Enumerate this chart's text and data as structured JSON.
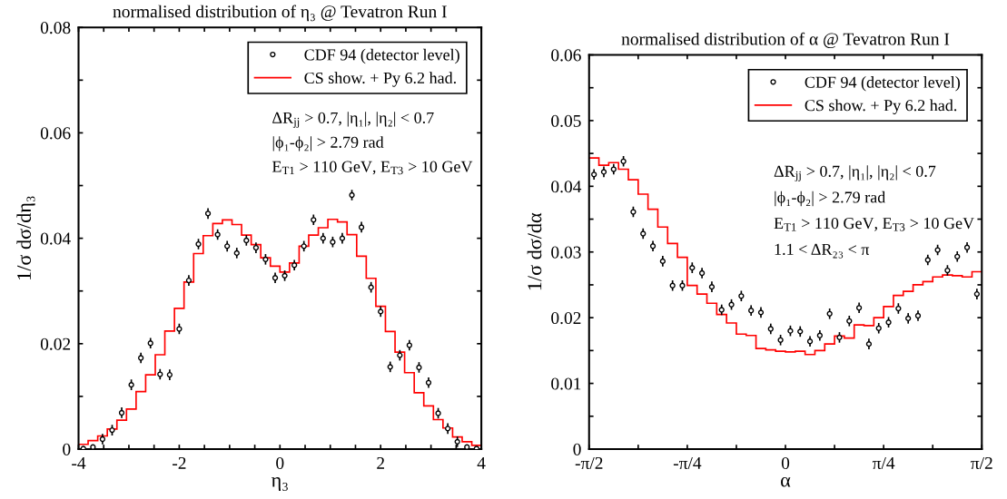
{
  "chart_data": [
    {
      "type": "scatter",
      "title": "normalised distribution of η₃ @ Tevatron Run I",
      "xlabel": "η₃",
      "ylabel": "1/σ dσ/dη₃",
      "xlim": [
        -4,
        4
      ],
      "ylim": [
        0,
        0.08
      ],
      "xticks": [
        -4,
        {
          "value": -3.5,
          "label": null
        },
        {
          "value": -3,
          "label": null
        },
        {
          "value": -2.5,
          "label": null
        },
        -2,
        {
          "value": -1.5,
          "label": null
        },
        {
          "value": -1,
          "label": null
        },
        {
          "value": -0.5,
          "label": null
        },
        0,
        {
          "value": 0.5,
          "label": null
        },
        {
          "value": 1,
          "label": null
        },
        {
          "value": 1.5,
          "label": null
        },
        2,
        {
          "value": 2.5,
          "label": null
        },
        {
          "value": 3,
          "label": null
        },
        {
          "value": 3.5,
          "label": null
        },
        4
      ],
      "yticks": [
        0,
        {
          "value": 0.01,
          "label": null
        },
        0.02,
        {
          "value": 0.03,
          "label": null
        },
        0.04,
        {
          "value": 0.05,
          "label": null
        },
        0.06,
        {
          "value": 0.07,
          "label": null
        },
        0.08
      ],
      "legend": "top right",
      "grid": false,
      "annotations": [
        "ΔR$_{jj}$ > 0.7, |η₁|, |η₂| < 0.7",
        "|ϕ₁-ϕ₂| > 2.79 rad",
        "E$_{T1}$ > 110 GeV, E$_{T3}$ > 10 GeV"
      ],
      "series": [
        {
          "name": "CDF 94 (detector level)",
          "marker": "circle",
          "color": "#000000",
          "x": [
            -3.905,
            -3.714,
            -3.524,
            -3.333,
            -3.143,
            -2.952,
            -2.762,
            -2.571,
            -2.381,
            -2.19,
            -2.0,
            -1.81,
            -1.619,
            -1.429,
            -1.238,
            -1.048,
            -0.857,
            -0.667,
            -0.476,
            -0.286,
            -0.095,
            0.095,
            0.286,
            0.476,
            0.667,
            0.857,
            1.048,
            1.238,
            1.429,
            1.619,
            1.81,
            2.0,
            2.19,
            2.381,
            2.571,
            2.762,
            2.952,
            3.143,
            3.333,
            3.524,
            3.714,
            3.905
          ],
          "values": [
            0.0001,
            0.0004,
            0.0019,
            0.0036,
            0.0069,
            0.0122,
            0.0173,
            0.0201,
            0.0142,
            0.0141,
            0.0228,
            0.032,
            0.0389,
            0.0447,
            0.0407,
            0.0385,
            0.0372,
            0.0396,
            0.0382,
            0.036,
            0.0325,
            0.0329,
            0.0349,
            0.0385,
            0.0435,
            0.04,
            0.0393,
            0.04,
            0.0482,
            0.0421,
            0.0307,
            0.0261,
            0.0156,
            0.0178,
            0.0197,
            0.0155,
            0.0126,
            0.0068,
            0.0039,
            0.0014,
            0.0004,
            0.0001
          ],
          "errors": [
            null,
            null,
            0.001,
            0.001,
            0.001,
            0.001,
            0.001,
            0.001,
            0.001,
            0.001,
            0.001,
            0.001,
            0.001,
            0.001,
            0.001,
            0.001,
            0.001,
            0.001,
            0.001,
            0.001,
            0.001,
            0.001,
            0.001,
            0.001,
            0.001,
            0.001,
            0.001,
            0.001,
            0.001,
            0.001,
            0.001,
            0.001,
            0.001,
            0.001,
            0.001,
            0.001,
            0.001,
            0.001,
            0.001,
            0.001,
            null,
            null
          ]
        },
        {
          "name": "CS show. + Py 6.2 had.",
          "type": "histogram",
          "color": "#ff0000",
          "bins": [
            -4,
            -3.81,
            -3.619,
            -3.429,
            -3.238,
            -3.048,
            -2.857,
            -2.667,
            -2.476,
            -2.286,
            -2.095,
            -1.905,
            -1.714,
            -1.524,
            -1.333,
            -1.143,
            -0.952,
            -0.762,
            -0.571,
            -0.381,
            -0.19,
            0,
            0.19,
            0.381,
            0.571,
            0.762,
            0.952,
            1.143,
            1.333,
            1.524,
            1.714,
            1.905,
            2.095,
            2.286,
            2.476,
            2.667,
            2.857,
            3.048,
            3.238,
            3.429,
            3.619,
            3.81,
            4
          ],
          "values": [
            0.0009,
            0.0016,
            0.0025,
            0.0038,
            0.0055,
            0.0076,
            0.0109,
            0.0141,
            0.0179,
            0.0224,
            0.0267,
            0.0317,
            0.0371,
            0.0405,
            0.0428,
            0.0435,
            0.0426,
            0.0406,
            0.0388,
            0.0363,
            0.0347,
            0.0336,
            0.0353,
            0.0385,
            0.0406,
            0.042,
            0.0436,
            0.0431,
            0.0407,
            0.0366,
            0.0324,
            0.0271,
            0.0223,
            0.0184,
            0.0145,
            0.0107,
            0.0082,
            0.0056,
            0.004,
            0.0023,
            0.0014,
            0.0007
          ]
        }
      ]
    },
    {
      "type": "scatter",
      "title": "normalised distribution of α @ Tevatron Run I",
      "xlabel": "α",
      "ylabel": "1/σ dσ/dα",
      "xlim": [
        -1.5708,
        1.5708
      ],
      "ylim": [
        0,
        0.06
      ],
      "xticks": [
        {
          "value": -1.5708,
          "label": "-π/2"
        },
        {
          "value": -1.1781,
          "label": null
        },
        {
          "value": -0.7854,
          "label": "-π/4"
        },
        {
          "value": -0.3927,
          "label": null
        },
        0,
        {
          "value": 0.3927,
          "label": null
        },
        {
          "value": 0.7854,
          "label": "π/4"
        },
        {
          "value": 1.1781,
          "label": null
        },
        {
          "value": 1.5708,
          "label": "π/2"
        }
      ],
      "yticks": [
        0,
        {
          "value": 0.005,
          "label": null
        },
        0.01,
        {
          "value": 0.015,
          "label": null
        },
        0.02,
        {
          "value": 0.025,
          "label": null
        },
        0.03,
        {
          "value": 0.035,
          "label": null
        },
        0.04,
        {
          "value": 0.045,
          "label": null
        },
        0.05,
        {
          "value": 0.055,
          "label": null
        },
        0.06
      ],
      "legend": "top right",
      "grid": false,
      "annotations": [
        "ΔR$_{jj}$ > 0.7, |η₁|, |η₂| < 0.7",
        "|ϕ₁-ϕ₂| > 2.79 rad",
        "E$_{T1}$ > 110 GeV, E$_{T3}$ > 10 GeV",
        "1.1 < ΔR₂₃ < π"
      ],
      "series": [
        {
          "name": "CDF 94 (detector level)",
          "marker": "circle",
          "color": "#000000",
          "x": [
            -1.5315,
            -1.453,
            -1.3744,
            -1.2959,
            -1.2174,
            -1.1388,
            -1.0603,
            -0.9817,
            -0.9032,
            -0.8247,
            -0.7461,
            -0.6676,
            -0.589,
            -0.5105,
            -0.432,
            -0.3534,
            -0.2749,
            -0.1963,
            -0.1178,
            -0.0393,
            0.0393,
            0.1178,
            0.1963,
            0.2749,
            0.3534,
            0.432,
            0.5105,
            0.589,
            0.6676,
            0.7461,
            0.8247,
            0.9032,
            0.9817,
            1.0603,
            1.1388,
            1.2174,
            1.2959,
            1.3744,
            1.453,
            1.5315
          ],
          "values": [
            0.0418,
            0.0422,
            0.0426,
            0.0438,
            0.0361,
            0.0328,
            0.0309,
            0.0286,
            0.0249,
            0.0249,
            0.0276,
            0.0268,
            0.0247,
            0.0212,
            0.022,
            0.0233,
            0.0211,
            0.0208,
            0.0183,
            0.0166,
            0.018,
            0.0179,
            0.0164,
            0.0173,
            0.0206,
            0.017,
            0.0195,
            0.0215,
            0.016,
            0.0184,
            0.0193,
            0.0214,
            0.0199,
            0.0203,
            0.0288,
            0.0303,
            0.0272,
            0.0293,
            0.0307,
            0.0236
          ],
          "errors": [
            0.0008,
            0.0008,
            0.0008,
            0.0008,
            0.0008,
            0.0008,
            0.0008,
            0.0008,
            0.0008,
            0.0008,
            0.0008,
            0.0008,
            0.0008,
            0.0008,
            0.0008,
            0.0008,
            0.0008,
            0.0008,
            0.0008,
            0.0008,
            0.0008,
            0.0008,
            0.0008,
            0.0008,
            0.0008,
            0.0008,
            0.0008,
            0.0008,
            0.0008,
            0.0008,
            0.0008,
            0.0008,
            0.0008,
            0.0008,
            0.0008,
            0.0008,
            0.0008,
            0.0008,
            0.0008,
            0.0008
          ]
        },
        {
          "name": "CS show. + Py 6.2 had.",
          "type": "histogram",
          "color": "#ff0000",
          "bins": [
            -1.5708,
            -1.4923,
            -1.4137,
            -1.3352,
            -1.2566,
            -1.1781,
            -1.0996,
            -1.021,
            -0.9425,
            -0.8639,
            -0.7854,
            -0.7069,
            -0.6283,
            -0.5498,
            -0.4712,
            -0.3927,
            -0.3142,
            -0.2356,
            -0.1571,
            -0.0785,
            0,
            0.0785,
            0.1571,
            0.2356,
            0.3142,
            0.3927,
            0.4712,
            0.5498,
            0.6283,
            0.7069,
            0.7854,
            0.8639,
            0.9425,
            1.021,
            1.0996,
            1.1781,
            1.2566,
            1.3352,
            1.4137,
            1.4923,
            1.5708
          ],
          "values": [
            0.0443,
            0.0432,
            0.0436,
            0.0426,
            0.041,
            0.0388,
            0.0365,
            0.0338,
            0.0313,
            0.0292,
            0.0249,
            0.0236,
            0.0222,
            0.0205,
            0.0192,
            0.0175,
            0.0173,
            0.0153,
            0.0151,
            0.0149,
            0.0148,
            0.0149,
            0.0144,
            0.015,
            0.016,
            0.0172,
            0.0169,
            0.0189,
            0.0188,
            0.02,
            0.0217,
            0.0234,
            0.024,
            0.025,
            0.0255,
            0.0262,
            0.0265,
            0.0264,
            0.0262,
            0.027
          ]
        }
      ]
    }
  ]
}
